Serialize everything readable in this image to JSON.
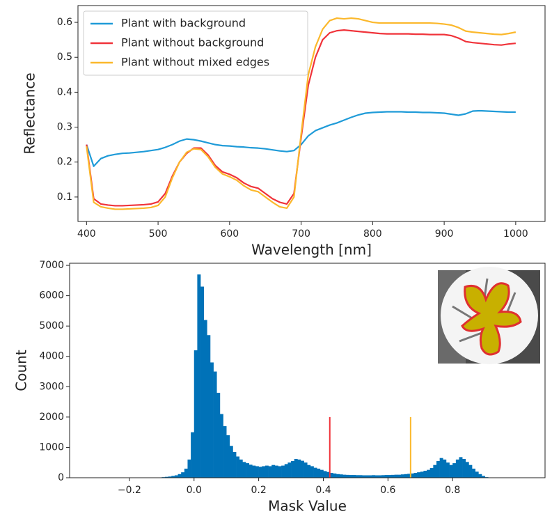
{
  "chart_data": [
    {
      "type": "line",
      "xlabel": "Wavelength [nm]",
      "ylabel": "Reflectance",
      "x": [
        400,
        410,
        420,
        430,
        440,
        450,
        460,
        470,
        480,
        490,
        500,
        510,
        520,
        530,
        540,
        550,
        560,
        570,
        580,
        590,
        600,
        610,
        620,
        630,
        640,
        650,
        660,
        670,
        680,
        690,
        700,
        710,
        720,
        730,
        740,
        750,
        760,
        770,
        780,
        790,
        800,
        810,
        820,
        830,
        840,
        850,
        860,
        870,
        880,
        890,
        900,
        910,
        920,
        930,
        940,
        950,
        960,
        970,
        980,
        990,
        1000
      ],
      "series": [
        {
          "name": "Plant with background",
          "color": "#1f9bd8",
          "values": [
            0.25,
            0.188,
            0.21,
            0.218,
            0.222,
            0.225,
            0.226,
            0.228,
            0.23,
            0.233,
            0.236,
            0.242,
            0.25,
            0.26,
            0.266,
            0.264,
            0.26,
            0.255,
            0.25,
            0.247,
            0.246,
            0.244,
            0.243,
            0.241,
            0.24,
            0.238,
            0.235,
            0.232,
            0.23,
            0.233,
            0.25,
            0.275,
            0.29,
            0.298,
            0.306,
            0.312,
            0.32,
            0.328,
            0.335,
            0.34,
            0.342,
            0.343,
            0.344,
            0.344,
            0.344,
            0.343,
            0.343,
            0.342,
            0.342,
            0.341,
            0.34,
            0.337,
            0.334,
            0.338,
            0.346,
            0.347,
            0.346,
            0.345,
            0.344,
            0.343,
            0.343
          ]
        },
        {
          "name": "Plant without background",
          "color": "#f0333a",
          "values": [
            0.25,
            0.095,
            0.08,
            0.077,
            0.075,
            0.075,
            0.076,
            0.077,
            0.078,
            0.08,
            0.086,
            0.11,
            0.16,
            0.2,
            0.225,
            0.24,
            0.24,
            0.22,
            0.19,
            0.172,
            0.165,
            0.155,
            0.14,
            0.13,
            0.125,
            0.11,
            0.095,
            0.085,
            0.08,
            0.11,
            0.27,
            0.42,
            0.5,
            0.55,
            0.57,
            0.576,
            0.578,
            0.576,
            0.574,
            0.572,
            0.57,
            0.568,
            0.567,
            0.567,
            0.567,
            0.567,
            0.566,
            0.566,
            0.565,
            0.565,
            0.565,
            0.562,
            0.555,
            0.545,
            0.542,
            0.54,
            0.538,
            0.536,
            0.535,
            0.538,
            0.54
          ]
        },
        {
          "name": "Plant without mixed edges",
          "color": "#fbb82c",
          "values": [
            0.245,
            0.085,
            0.072,
            0.068,
            0.065,
            0.065,
            0.066,
            0.067,
            0.068,
            0.07,
            0.076,
            0.1,
            0.155,
            0.2,
            0.228,
            0.238,
            0.236,
            0.215,
            0.185,
            0.166,
            0.158,
            0.148,
            0.132,
            0.12,
            0.115,
            0.1,
            0.085,
            0.072,
            0.068,
            0.1,
            0.28,
            0.45,
            0.53,
            0.58,
            0.605,
            0.612,
            0.61,
            0.612,
            0.61,
            0.605,
            0.6,
            0.598,
            0.598,
            0.598,
            0.598,
            0.598,
            0.598,
            0.598,
            0.598,
            0.597,
            0.595,
            0.592,
            0.585,
            0.575,
            0.572,
            0.57,
            0.568,
            0.566,
            0.565,
            0.568,
            0.572
          ]
        }
      ],
      "xlim": [
        388,
        1041
      ],
      "xticks": [
        400,
        500,
        600,
        700,
        800,
        900,
        1000
      ],
      "ylim": [
        0.03,
        0.648
      ],
      "yticks": [
        0.1,
        0.2,
        0.3,
        0.4,
        0.5,
        0.6
      ],
      "legend": "upper left"
    },
    {
      "type": "histogram",
      "xlabel": "Mask Value",
      "ylabel": "Count",
      "color": "#0072b8",
      "bins": [
        -0.11,
        -0.1,
        -0.09,
        -0.08,
        -0.07,
        -0.06,
        -0.05,
        -0.04,
        -0.03,
        -0.02,
        -0.01,
        0,
        0.01,
        0.02,
        0.03,
        0.04,
        0.05,
        0.06,
        0.07,
        0.08,
        0.09,
        0.1,
        0.11,
        0.12,
        0.13,
        0.14,
        0.15,
        0.16,
        0.17,
        0.18,
        0.19,
        0.2,
        0.21,
        0.22,
        0.23,
        0.24,
        0.25,
        0.26,
        0.27,
        0.28,
        0.29,
        0.3,
        0.31,
        0.32,
        0.33,
        0.34,
        0.35,
        0.36,
        0.37,
        0.38,
        0.39,
        0.4,
        0.41,
        0.42,
        0.43,
        0.44,
        0.45,
        0.46,
        0.47,
        0.48,
        0.49,
        0.5,
        0.51,
        0.52,
        0.53,
        0.54,
        0.55,
        0.56,
        0.57,
        0.58,
        0.59,
        0.6,
        0.61,
        0.62,
        0.63,
        0.64,
        0.65,
        0.66,
        0.67,
        0.68,
        0.69,
        0.7,
        0.71,
        0.72,
        0.73,
        0.74,
        0.75,
        0.76,
        0.77,
        0.78,
        0.79,
        0.8,
        0.81,
        0.82,
        0.83,
        0.84,
        0.85,
        0.86,
        0.87,
        0.88,
        0.89,
        0.9,
        0.91
      ],
      "values": [
        10,
        20,
        30,
        40,
        60,
        80,
        120,
        180,
        300,
        600,
        1500,
        4200,
        6700,
        6300,
        5200,
        4700,
        3800,
        3500,
        2800,
        2100,
        1700,
        1400,
        1050,
        850,
        700,
        600,
        520,
        480,
        430,
        400,
        380,
        360,
        380,
        400,
        380,
        420,
        400,
        380,
        400,
        450,
        500,
        550,
        620,
        600,
        560,
        500,
        420,
        380,
        330,
        300,
        260,
        220,
        190,
        160,
        140,
        120,
        110,
        100,
        95,
        90,
        90,
        85,
        85,
        80,
        80,
        80,
        85,
        80,
        80,
        85,
        90,
        90,
        95,
        100,
        100,
        110,
        120,
        130,
        140,
        160,
        180,
        200,
        230,
        260,
        320,
        420,
        550,
        650,
        600,
        500,
        420,
        480,
        600,
        680,
        620,
        520,
        420,
        300,
        200,
        120,
        60,
        20
      ],
      "vlines": [
        {
          "x": 0.42,
          "height": 2000,
          "color": "#f0333a"
        },
        {
          "x": 0.67,
          "height": 2000,
          "color": "#fbb82c"
        }
      ],
      "xlim": [
        -0.385,
        1.086
      ],
      "xticks": [
        {
          "value": -0.2,
          "label": "−0.2"
        },
        {
          "value": 0,
          "label": "0.0"
        },
        0.2,
        0.4,
        0.6,
        0.8
      ],
      "ylim": [
        0,
        7070
      ],
      "yticks": [
        0,
        1000,
        2000,
        3000,
        4000,
        5000,
        6000,
        7000
      ]
    }
  ]
}
